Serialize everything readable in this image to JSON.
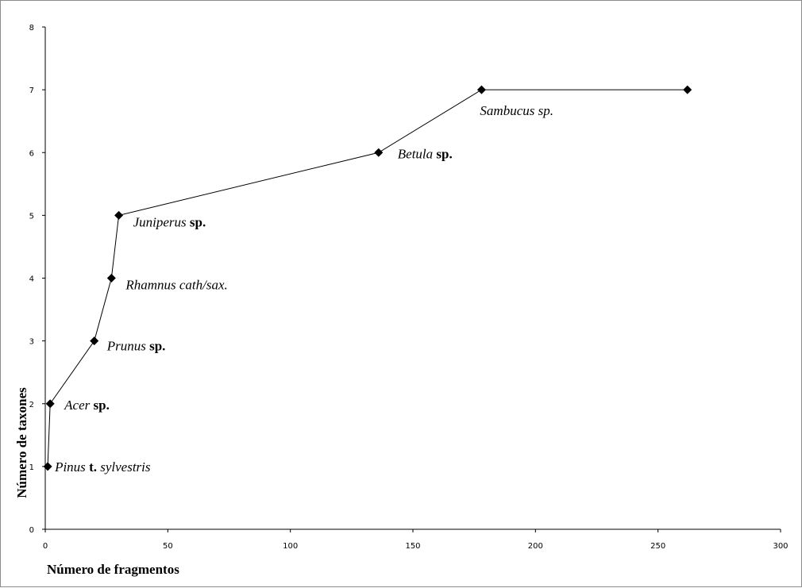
{
  "chart_data": {
    "type": "line",
    "title": "",
    "xlabel": "Número de fragmentos",
    "ylabel": "Número de taxones",
    "xlim": [
      0,
      300
    ],
    "ylim": [
      0,
      8
    ],
    "xticks": [
      "0",
      "50",
      "100",
      "150",
      "200",
      "250",
      "300"
    ],
    "yticks": [
      "0",
      "1",
      "2",
      "3",
      "4",
      "5",
      "6",
      "7",
      "8"
    ],
    "grid": false,
    "legend": "none",
    "line_color": "#000000",
    "series": [
      {
        "points": [
          {
            "x": 1,
            "y": 1,
            "label": [
              {
                "t": "Pinus",
                "s": "i"
              },
              {
                "t": " t. ",
                "s": "b"
              },
              {
                "t": "sylvestris",
                "s": "i"
              }
            ]
          },
          {
            "x": 2,
            "y": 2,
            "label": [
              {
                "t": "Acer",
                "s": "i"
              },
              {
                "t": " sp.",
                "s": "b"
              }
            ]
          },
          {
            "x": 20,
            "y": 3,
            "label": [
              {
                "t": "Prunus",
                "s": "i"
              },
              {
                "t": " sp.",
                "s": "b"
              }
            ]
          },
          {
            "x": 27,
            "y": 4,
            "label": [
              {
                "t": "Rhamnus cath/sax.",
                "s": "i"
              }
            ]
          },
          {
            "x": 30,
            "y": 5,
            "label": [
              {
                "t": "Juniperus",
                "s": "i"
              },
              {
                "t": " sp.",
                "s": "b"
              }
            ]
          },
          {
            "x": 136,
            "y": 6,
            "label": [
              {
                "t": "Betula",
                "s": "i"
              },
              {
                "t": " sp.",
                "s": "b"
              }
            ]
          },
          {
            "x": 178,
            "y": 7,
            "label": [
              {
                "t": "Sambucus sp.",
                "s": "i"
              }
            ]
          },
          {
            "x": 262,
            "y": 7,
            "label": []
          }
        ]
      }
    ]
  }
}
